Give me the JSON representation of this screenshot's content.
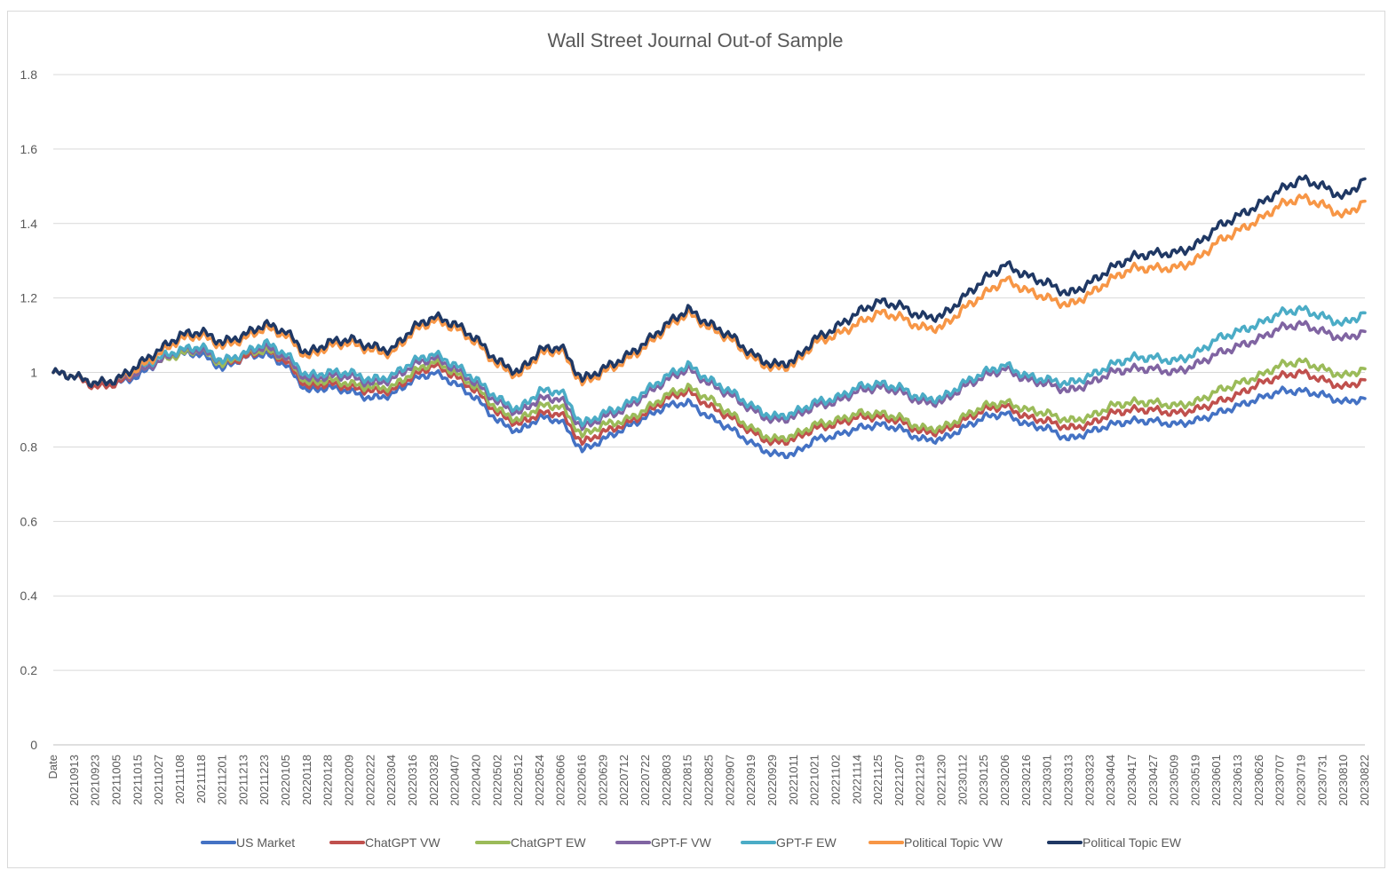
{
  "chart_data": {
    "type": "line",
    "title": "Wall Street Journal Out-of Sample",
    "xlabel": "",
    "ylabel": "",
    "ylim": [
      0,
      1.8
    ],
    "yticks": [
      "0",
      "0.2",
      "0.4",
      "0.6",
      "0.8",
      "1",
      "1.2",
      "1.4",
      "1.6",
      "1.8"
    ],
    "grid": true,
    "legend_position": "bottom",
    "categories": [
      "Date",
      "20210913",
      "20210923",
      "20211005",
      "20211015",
      "20211027",
      "20211108",
      "20211118",
      "20211201",
      "20211213",
      "20211223",
      "20220105",
      "20220118",
      "20220128",
      "20220209",
      "20220222",
      "20220304",
      "20220316",
      "20220328",
      "20220407",
      "20220420",
      "20220502",
      "20220512",
      "20220524",
      "20220606",
      "20220616",
      "20220629",
      "20220712",
      "20220722",
      "20220803",
      "20220815",
      "20220825",
      "20220907",
      "20220919",
      "20220929",
      "20221011",
      "20221021",
      "20221102",
      "20221114",
      "20221125",
      "20221207",
      "20221219",
      "20221230",
      "20230112",
      "20230125",
      "20230206",
      "20230216",
      "20230301",
      "20230313",
      "20230323",
      "20230404",
      "20230417",
      "20230427",
      "20230509",
      "20230519",
      "20230601",
      "20230613",
      "20230626",
      "20230707",
      "20230719",
      "20230731",
      "20230810",
      "20230822"
    ],
    "series": [
      {
        "name": "US Market",
        "color": "#4472c4",
        "values": [
          1.0,
          0.99,
          0.97,
          0.97,
          0.99,
          1.03,
          1.05,
          1.05,
          1.01,
          1.04,
          1.05,
          1.02,
          0.95,
          0.96,
          0.95,
          0.93,
          0.94,
          0.98,
          1.0,
          0.97,
          0.93,
          0.87,
          0.84,
          0.88,
          0.87,
          0.79,
          0.82,
          0.85,
          0.88,
          0.91,
          0.92,
          0.88,
          0.85,
          0.81,
          0.78,
          0.78,
          0.82,
          0.83,
          0.85,
          0.86,
          0.85,
          0.82,
          0.82,
          0.85,
          0.88,
          0.89,
          0.86,
          0.85,
          0.82,
          0.84,
          0.86,
          0.87,
          0.87,
          0.86,
          0.87,
          0.89,
          0.91,
          0.93,
          0.95,
          0.95,
          0.94,
          0.92,
          0.93
        ]
      },
      {
        "name": "ChatGPT VW",
        "color": "#c0504d",
        "values": [
          1.0,
          0.99,
          0.96,
          0.97,
          1.0,
          1.03,
          1.05,
          1.06,
          1.02,
          1.04,
          1.06,
          1.03,
          0.96,
          0.97,
          0.96,
          0.95,
          0.95,
          0.99,
          1.02,
          0.99,
          0.95,
          0.89,
          0.86,
          0.89,
          0.89,
          0.81,
          0.84,
          0.86,
          0.89,
          0.93,
          0.95,
          0.91,
          0.88,
          0.84,
          0.81,
          0.82,
          0.85,
          0.86,
          0.88,
          0.88,
          0.87,
          0.84,
          0.84,
          0.87,
          0.9,
          0.91,
          0.88,
          0.87,
          0.85,
          0.86,
          0.89,
          0.9,
          0.9,
          0.89,
          0.9,
          0.92,
          0.94,
          0.97,
          0.99,
          1.0,
          0.98,
          0.96,
          0.98
        ]
      },
      {
        "name": "ChatGPT EW",
        "color": "#9bbb59",
        "values": [
          1.0,
          0.99,
          0.97,
          0.98,
          1.0,
          1.03,
          1.05,
          1.06,
          1.02,
          1.05,
          1.06,
          1.04,
          0.97,
          0.98,
          0.97,
          0.96,
          0.96,
          1.0,
          1.03,
          1.0,
          0.96,
          0.9,
          0.87,
          0.91,
          0.91,
          0.83,
          0.86,
          0.87,
          0.9,
          0.94,
          0.96,
          0.93,
          0.89,
          0.85,
          0.82,
          0.83,
          0.86,
          0.87,
          0.89,
          0.89,
          0.88,
          0.85,
          0.85,
          0.88,
          0.91,
          0.92,
          0.9,
          0.89,
          0.87,
          0.88,
          0.91,
          0.92,
          0.92,
          0.91,
          0.92,
          0.95,
          0.97,
          0.99,
          1.02,
          1.03,
          1.01,
          0.99,
          1.01
        ]
      },
      {
        "name": "GPT-F VW",
        "color": "#8064a2",
        "values": [
          1.0,
          0.99,
          0.97,
          0.98,
          1.0,
          1.03,
          1.06,
          1.06,
          1.03,
          1.05,
          1.07,
          1.04,
          0.98,
          0.99,
          0.99,
          0.97,
          0.98,
          1.02,
          1.04,
          1.01,
          0.97,
          0.92,
          0.89,
          0.93,
          0.93,
          0.85,
          0.88,
          0.9,
          0.94,
          0.98,
          1.01,
          0.97,
          0.94,
          0.9,
          0.87,
          0.88,
          0.91,
          0.92,
          0.95,
          0.96,
          0.95,
          0.92,
          0.92,
          0.96,
          0.99,
          1.01,
          0.98,
          0.97,
          0.95,
          0.97,
          1.0,
          1.01,
          1.01,
          1.0,
          1.02,
          1.05,
          1.07,
          1.09,
          1.12,
          1.13,
          1.11,
          1.09,
          1.11
        ]
      },
      {
        "name": "GPT-F EW",
        "color": "#4bacc6",
        "values": [
          1.0,
          0.99,
          0.97,
          0.98,
          1.01,
          1.04,
          1.06,
          1.07,
          1.03,
          1.05,
          1.08,
          1.05,
          0.99,
          1.0,
          1.0,
          0.98,
          0.99,
          1.03,
          1.05,
          1.02,
          0.98,
          0.93,
          0.9,
          0.95,
          0.95,
          0.86,
          0.89,
          0.91,
          0.95,
          0.99,
          1.02,
          0.98,
          0.95,
          0.91,
          0.88,
          0.89,
          0.92,
          0.93,
          0.96,
          0.97,
          0.96,
          0.93,
          0.93,
          0.97,
          1.0,
          1.02,
          0.99,
          0.98,
          0.97,
          0.99,
          1.02,
          1.04,
          1.04,
          1.03,
          1.05,
          1.09,
          1.11,
          1.13,
          1.16,
          1.17,
          1.15,
          1.13,
          1.16
        ]
      },
      {
        "name": "Political Topic VW",
        "color": "#f79646",
        "values": [
          1.0,
          0.99,
          0.97,
          0.98,
          1.01,
          1.05,
          1.09,
          1.1,
          1.07,
          1.09,
          1.12,
          1.1,
          1.04,
          1.07,
          1.08,
          1.06,
          1.05,
          1.11,
          1.14,
          1.12,
          1.08,
          1.02,
          0.99,
          1.05,
          1.06,
          0.97,
          1.0,
          1.03,
          1.07,
          1.12,
          1.16,
          1.12,
          1.09,
          1.04,
          1.01,
          1.02,
          1.08,
          1.1,
          1.13,
          1.16,
          1.15,
          1.12,
          1.12,
          1.17,
          1.21,
          1.25,
          1.22,
          1.2,
          1.18,
          1.21,
          1.25,
          1.28,
          1.28,
          1.28,
          1.3,
          1.35,
          1.38,
          1.41,
          1.45,
          1.47,
          1.45,
          1.42,
          1.46
        ]
      },
      {
        "name": "Political Topic EW",
        "color": "#1f3864",
        "values": [
          1.0,
          0.99,
          0.97,
          0.98,
          1.02,
          1.06,
          1.1,
          1.11,
          1.08,
          1.1,
          1.13,
          1.11,
          1.05,
          1.08,
          1.09,
          1.07,
          1.06,
          1.12,
          1.15,
          1.13,
          1.09,
          1.03,
          1.0,
          1.06,
          1.07,
          0.98,
          1.01,
          1.04,
          1.08,
          1.13,
          1.17,
          1.13,
          1.1,
          1.05,
          1.02,
          1.03,
          1.09,
          1.12,
          1.16,
          1.19,
          1.18,
          1.15,
          1.15,
          1.2,
          1.25,
          1.29,
          1.26,
          1.24,
          1.21,
          1.24,
          1.28,
          1.31,
          1.32,
          1.32,
          1.34,
          1.39,
          1.42,
          1.45,
          1.49,
          1.52,
          1.5,
          1.47,
          1.52
        ]
      }
    ]
  }
}
